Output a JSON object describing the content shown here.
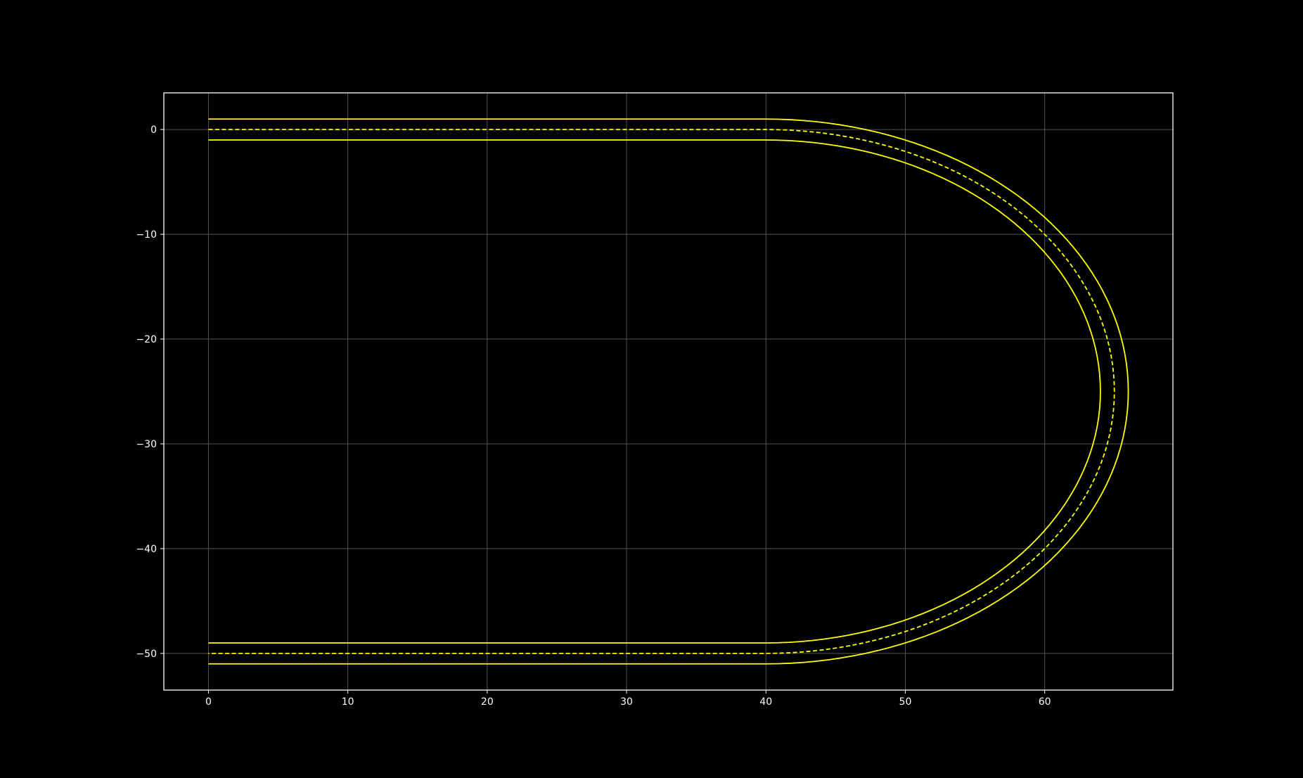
{
  "chart_data": {
    "type": "line",
    "title": "",
    "xlabel": "",
    "ylabel": "",
    "xlim": [
      -3.2,
      69.2
    ],
    "ylim": [
      -53.5,
      3.5
    ],
    "xticks": [
      0,
      10,
      20,
      30,
      40,
      50,
      60
    ],
    "yticks": [
      0,
      -10,
      -20,
      -30,
      -40,
      -50
    ],
    "grid": true,
    "legend": "none",
    "colors": {
      "background": "#000000",
      "axes_frame": "#ffffff",
      "tick_labels": "#ffffff",
      "grid": "#555555",
      "lanes": "#ffff00"
    },
    "series": [
      {
        "style": "solid",
        "segments": [
          {
            "kind": "line",
            "from": [
              0,
              1
            ],
            "to": [
              40,
              1
            ]
          },
          {
            "kind": "arc",
            "center": [
              40,
              -25
            ],
            "rx": 26,
            "ry": 26,
            "from_deg": 90,
            "to_deg": -90
          },
          {
            "kind": "line",
            "from": [
              40,
              -51
            ],
            "to": [
              0,
              -51
            ]
          }
        ]
      },
      {
        "style": "dashed",
        "segments": [
          {
            "kind": "line",
            "from": [
              0,
              0
            ],
            "to": [
              40,
              0
            ]
          },
          {
            "kind": "arc",
            "center": [
              40,
              -25
            ],
            "rx": 25,
            "ry": 25,
            "from_deg": 90,
            "to_deg": -90
          },
          {
            "kind": "line",
            "from": [
              40,
              -50
            ],
            "to": [
              0,
              -50
            ]
          }
        ]
      },
      {
        "style": "solid",
        "segments": [
          {
            "kind": "line",
            "from": [
              0,
              -1
            ],
            "to": [
              40,
              -1
            ]
          },
          {
            "kind": "arc",
            "center": [
              40,
              -25
            ],
            "rx": 24,
            "ry": 24,
            "from_deg": 90,
            "to_deg": -90
          },
          {
            "kind": "line",
            "from": [
              40,
              -49
            ],
            "to": [
              0,
              -49
            ]
          }
        ]
      }
    ]
  }
}
